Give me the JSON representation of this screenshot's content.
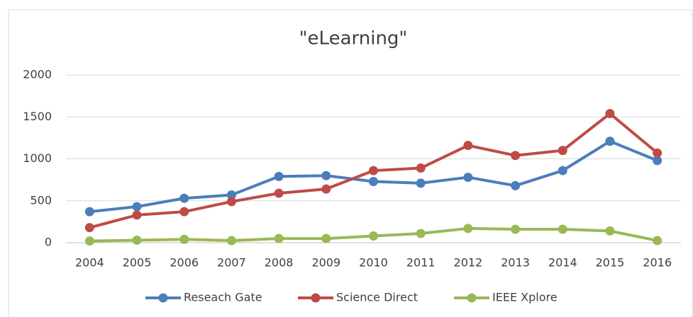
{
  "chart_data": {
    "type": "line",
    "title": "\"eLearning\"",
    "categories": [
      "2004",
      "2005",
      "2006",
      "2007",
      "2008",
      "2009",
      "2010",
      "2011",
      "2012",
      "2013",
      "2014",
      "2015",
      "2016"
    ],
    "series": [
      {
        "name": "Reseach Gate",
        "color": "#4a7ebb",
        "values": [
          370,
          430,
          530,
          570,
          790,
          800,
          730,
          710,
          780,
          680,
          860,
          1210,
          980
        ]
      },
      {
        "name": "Science Direct",
        "color": "#be4b48",
        "values": [
          180,
          330,
          370,
          490,
          590,
          640,
          860,
          890,
          1160,
          1040,
          1100,
          1540,
          1070
        ]
      },
      {
        "name": "IEEE Xplore",
        "color": "#98b954",
        "values": [
          20,
          30,
          40,
          25,
          50,
          50,
          80,
          110,
          170,
          160,
          160,
          140,
          25
        ]
      }
    ],
    "ylim": [
      0,
      2000
    ],
    "yticks": [
      0,
      500,
      1000,
      1500,
      2000
    ],
    "grid": true,
    "legend": "bottom"
  }
}
